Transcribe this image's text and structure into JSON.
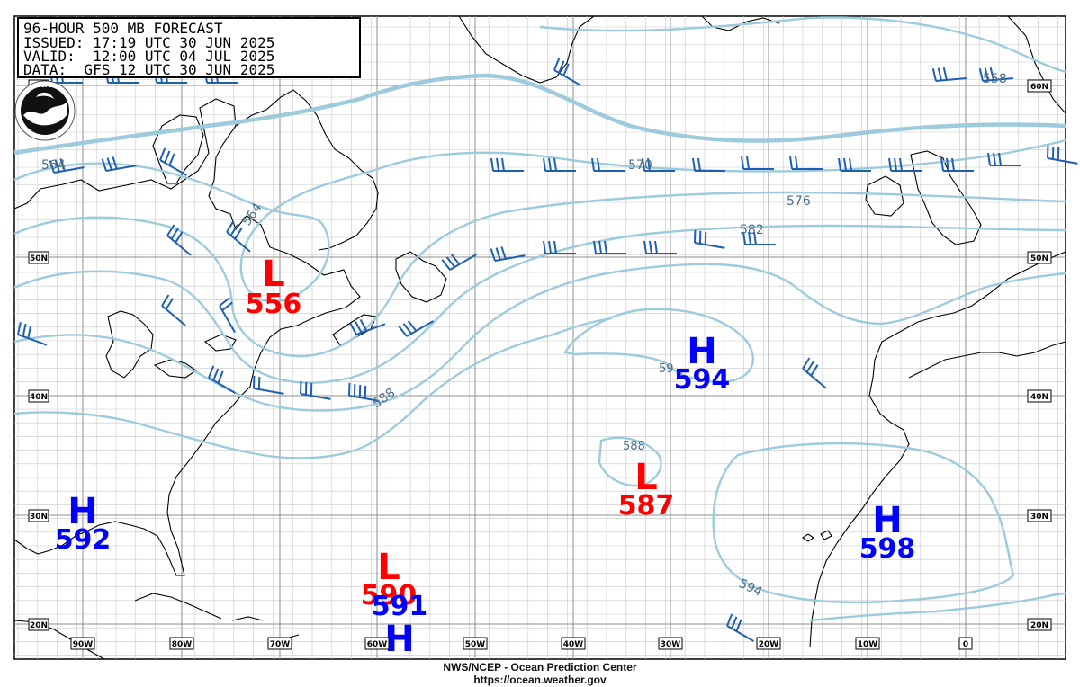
{
  "title_box": {
    "line1": "96-HOUR 500 MB FORECAST",
    "line2": "ISSUED: 17:19 UTC 30 JUN 2025",
    "line3": "VALID:  12:00 UTC 04 JUL 2025",
    "line4": "DATA:  GFS 12 UTC 30 JUN 2025"
  },
  "logo": {
    "name": "NOAA",
    "text": "NOAA"
  },
  "lat_labels": [
    "60N",
    "50N",
    "40N",
    "30N",
    "20N"
  ],
  "lon_labels": [
    "90W",
    "80W",
    "70W",
    "60W",
    "50W",
    "40W",
    "30W",
    "20W",
    "10W",
    "0"
  ],
  "contour_labels": [
    "564",
    "564",
    "570",
    "576",
    "582",
    "588",
    "588",
    "59",
    "594",
    "558"
  ],
  "centers": [
    {
      "type": "L",
      "value": "556",
      "color": "#ff0000"
    },
    {
      "type": "L",
      "value": "587",
      "color": "#ff0000"
    },
    {
      "type": "L",
      "value": "590",
      "color": "#ff0000"
    },
    {
      "type": "H",
      "value": "594",
      "color": "#0000ff"
    },
    {
      "type": "H",
      "value": "592",
      "color": "#0000ff"
    },
    {
      "type": "H",
      "value": "598",
      "color": "#0000ff"
    },
    {
      "type": "H",
      "value": "591",
      "color": "#0000ff"
    }
  ],
  "colors": {
    "contour": "#9dcbdd",
    "grid": "#b3b3b3",
    "coast": "#000000",
    "barb": "#1f5fb0",
    "low": "#ff0000",
    "high": "#0000ff",
    "contour_label": "#4a6f8a"
  },
  "footer": {
    "line1": "NWS/NCEP - Ocean Prediction Center",
    "line2": "https://ocean.weather.gov"
  }
}
